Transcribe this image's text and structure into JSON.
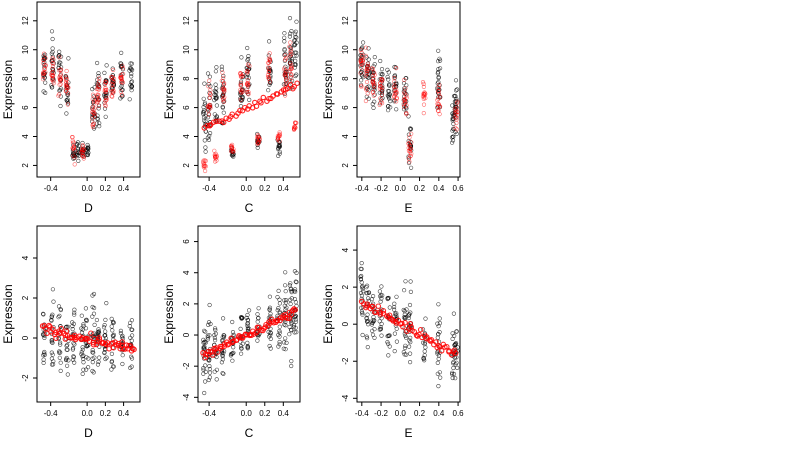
{
  "chart_data": [
    {
      "type": "scatter",
      "xlabel": "D",
      "ylabel": "Expression",
      "xlim": [
        -0.55,
        0.58
      ],
      "ylim": [
        1.2,
        13.3
      ],
      "xticks": [
        -0.4,
        0.0,
        0.2,
        0.4
      ],
      "xtick_labels": [
        "-0.4",
        "0.0",
        "0.2",
        "0.4"
      ],
      "yticks": [
        2,
        4,
        6,
        8,
        10,
        12
      ],
      "ytick_labels": [
        "2",
        "4",
        "6",
        "8",
        "10",
        "12"
      ],
      "series": [
        {
          "color": "#000000",
          "columns": [
            {
              "x": -0.47,
              "center": 8.5,
              "spread": 1.6
            },
            {
              "x": -0.38,
              "center": 9.0,
              "spread": 1.8
            },
            {
              "x": -0.3,
              "center": 8.2,
              "spread": 1.7
            },
            {
              "x": -0.22,
              "center": 7.5,
              "spread": 1.5
            },
            {
              "x": -0.15,
              "center": 2.8,
              "spread": 0.5
            },
            {
              "x": -0.1,
              "center": 3.0,
              "spread": 0.6
            },
            {
              "x": -0.05,
              "center": 2.9,
              "spread": 0.5
            },
            {
              "x": 0.0,
              "center": 3.0,
              "spread": 0.5
            },
            {
              "x": 0.07,
              "center": 6.0,
              "spread": 1.5
            },
            {
              "x": 0.12,
              "center": 7.0,
              "spread": 1.8
            },
            {
              "x": 0.2,
              "center": 7.2,
              "spread": 1.5
            },
            {
              "x": 0.28,
              "center": 7.8,
              "spread": 1.4
            },
            {
              "x": 0.38,
              "center": 8.0,
              "spread": 1.5
            },
            {
              "x": 0.48,
              "center": 8.2,
              "spread": 1.3
            }
          ]
        },
        {
          "color": "#ff0000",
          "columns": [
            {
              "x": -0.47,
              "center": 8.8,
              "spread": 1.0
            },
            {
              "x": -0.38,
              "center": 8.5,
              "spread": 1.2
            },
            {
              "x": -0.3,
              "center": 8.0,
              "spread": 1.0
            },
            {
              "x": -0.22,
              "center": 7.6,
              "spread": 1.0
            },
            {
              "x": -0.15,
              "center": 3.2,
              "spread": 0.8
            },
            {
              "x": -0.05,
              "center": 3.0,
              "spread": 0.6
            },
            {
              "x": 0.07,
              "center": 5.8,
              "spread": 1.2
            },
            {
              "x": 0.12,
              "center": 6.8,
              "spread": 1.2
            },
            {
              "x": 0.2,
              "center": 7.3,
              "spread": 1.0
            },
            {
              "x": 0.28,
              "center": 7.6,
              "spread": 1.0
            },
            {
              "x": 0.38,
              "center": 7.8,
              "spread": 1.0
            }
          ]
        }
      ]
    },
    {
      "type": "scatter",
      "xlabel": "C",
      "ylabel": "Expression",
      "xlim": [
        -0.52,
        0.58
      ],
      "ylim": [
        1.2,
        13.3
      ],
      "xticks": [
        -0.4,
        0.0,
        0.2,
        0.4
      ],
      "xtick_labels": [
        "-0.4",
        "0.0",
        "0.2",
        "0.4"
      ],
      "yticks": [
        2,
        4,
        6,
        8,
        10,
        12
      ],
      "ytick_labels": [
        "2",
        "4",
        "6",
        "8",
        "10",
        "12"
      ],
      "series": [
        {
          "color": "#000000",
          "columns": [
            {
              "x": -0.45,
              "center": 5.2,
              "spread": 2.0
            },
            {
              "x": -0.4,
              "center": 5.8,
              "spread": 2.2
            },
            {
              "x": -0.33,
              "center": 6.2,
              "spread": 2.0
            },
            {
              "x": -0.25,
              "center": 6.5,
              "spread": 2.0
            },
            {
              "x": -0.15,
              "center": 2.8,
              "spread": 0.3
            },
            {
              "x": -0.05,
              "center": 7.0,
              "spread": 1.8
            },
            {
              "x": 0.02,
              "center": 8.0,
              "spread": 1.8
            },
            {
              "x": 0.13,
              "center": 3.8,
              "spread": 0.5
            },
            {
              "x": 0.25,
              "center": 8.5,
              "spread": 1.5
            },
            {
              "x": 0.35,
              "center": 3.5,
              "spread": 0.8
            },
            {
              "x": 0.42,
              "center": 9.0,
              "spread": 2.0
            },
            {
              "x": 0.48,
              "center": 9.5,
              "spread": 2.2
            },
            {
              "x": 0.53,
              "center": 9.8,
              "spread": 2.0
            }
          ]
        },
        {
          "color": "#ff0000",
          "columns": [
            {
              "x": -0.45,
              "center": 2.0,
              "spread": 0.3
            },
            {
              "x": -0.4,
              "center": 6.5,
              "spread": 1.0
            },
            {
              "x": -0.33,
              "center": 2.6,
              "spread": 0.3
            },
            {
              "x": -0.25,
              "center": 7.2,
              "spread": 1.0
            },
            {
              "x": -0.15,
              "center": 3.2,
              "spread": 0.3
            },
            {
              "x": -0.05,
              "center": 7.6,
              "spread": 1.0
            },
            {
              "x": 0.02,
              "center": 8.0,
              "spread": 1.0
            },
            {
              "x": 0.13,
              "center": 3.8,
              "spread": 0.3
            },
            {
              "x": 0.25,
              "center": 8.6,
              "spread": 1.0
            },
            {
              "x": 0.35,
              "center": 4.0,
              "spread": 0.3
            },
            {
              "x": 0.42,
              "center": 8.4,
              "spread": 1.2
            },
            {
              "x": 0.48,
              "center": 9.0,
              "spread": 1.2
            },
            {
              "x": 0.53,
              "center": 4.8,
              "spread": 0.4
            }
          ]
        }
      ],
      "trend": {
        "color": "#ff0000",
        "from": [
          -0.45,
          4.6
        ],
        "to": [
          0.55,
          7.6
        ],
        "count": 40
      }
    },
    {
      "type": "scatter",
      "xlabel": "E",
      "ylabel": "Expression",
      "xlim": [
        -0.45,
        0.62
      ],
      "ylim": [
        1.2,
        13.3
      ],
      "xticks": [
        -0.4,
        -0.2,
        0.0,
        0.2,
        0.4,
        0.6
      ],
      "xtick_labels": [
        "-0.4",
        "-0.2",
        "0.0",
        "0.2",
        "0.4",
        "0.6"
      ],
      "yticks": [
        2,
        4,
        6,
        8,
        10,
        12
      ],
      "ytick_labels": [
        "2",
        "4",
        "6",
        "8",
        "10",
        "12"
      ],
      "series": [
        {
          "color": "#000000",
          "columns": [
            {
              "x": -0.4,
              "center": 8.8,
              "spread": 2.0
            },
            {
              "x": -0.34,
              "center": 8.5,
              "spread": 2.0
            },
            {
              "x": -0.28,
              "center": 8.0,
              "spread": 1.8
            },
            {
              "x": -0.2,
              "center": 7.5,
              "spread": 1.6
            },
            {
              "x": -0.12,
              "center": 7.2,
              "spread": 1.6
            },
            {
              "x": -0.05,
              "center": 7.5,
              "spread": 1.4
            },
            {
              "x": 0.05,
              "center": 6.8,
              "spread": 1.5
            },
            {
              "x": 0.1,
              "center": 3.5,
              "spread": 1.5
            },
            {
              "x": 0.4,
              "center": 7.5,
              "spread": 2.5
            },
            {
              "x": 0.55,
              "center": 5.5,
              "spread": 1.8
            },
            {
              "x": 0.58,
              "center": 5.8,
              "spread": 1.8
            }
          ]
        },
        {
          "color": "#ff0000",
          "columns": [
            {
              "x": -0.4,
              "center": 8.8,
              "spread": 1.2
            },
            {
              "x": -0.35,
              "center": 8.2,
              "spread": 1.2
            },
            {
              "x": -0.28,
              "center": 7.8,
              "spread": 1.0
            },
            {
              "x": -0.2,
              "center": 7.5,
              "spread": 1.0
            },
            {
              "x": -0.05,
              "center": 7.2,
              "spread": 1.0
            },
            {
              "x": 0.05,
              "center": 6.5,
              "spread": 1.0
            },
            {
              "x": 0.1,
              "center": 3.0,
              "spread": 1.2
            },
            {
              "x": 0.25,
              "center": 7.0,
              "spread": 1.0
            },
            {
              "x": 0.4,
              "center": 6.2,
              "spread": 1.2
            },
            {
              "x": 0.58,
              "center": 5.5,
              "spread": 1.0
            }
          ]
        }
      ]
    },
    {
      "type": "scatter",
      "xlabel": "D",
      "ylabel": "Expression",
      "xlim": [
        -0.55,
        0.58
      ],
      "ylim": [
        -3.2,
        5.6
      ],
      "xticks": [
        -0.4,
        0.0,
        0.2,
        0.4
      ],
      "xtick_labels": [
        "-0.4",
        "0.0",
        "0.2",
        "0.4"
      ],
      "yticks": [
        -2,
        0,
        2,
        4
      ],
      "ytick_labels": [
        "-2",
        "0",
        "2",
        "4"
      ],
      "series": [
        {
          "color": "#000000",
          "columns": [
            {
              "x": -0.47,
              "center": 0.5,
              "spread": 1.3
            },
            {
              "x": -0.38,
              "center": 0.3,
              "spread": 1.6
            },
            {
              "x": -0.3,
              "center": 0.2,
              "spread": 1.5
            },
            {
              "x": -0.22,
              "center": 0.0,
              "spread": 1.4
            },
            {
              "x": -0.15,
              "center": 0.1,
              "spread": 1.5
            },
            {
              "x": -0.05,
              "center": -0.2,
              "spread": 1.5
            },
            {
              "x": 0.0,
              "center": -0.1,
              "spread": 1.5
            },
            {
              "x": 0.07,
              "center": 0.0,
              "spread": 2.0
            },
            {
              "x": 0.12,
              "center": -0.3,
              "spread": 1.6
            },
            {
              "x": 0.2,
              "center": -0.3,
              "spread": 1.5
            },
            {
              "x": 0.28,
              "center": -0.4,
              "spread": 1.4
            },
            {
              "x": 0.38,
              "center": -0.5,
              "spread": 1.2
            },
            {
              "x": 0.48,
              "center": -0.3,
              "spread": 1.2
            }
          ]
        }
      ],
      "trend": {
        "color": "#ff0000",
        "from": [
          -0.48,
          0.45
        ],
        "to": [
          0.52,
          -0.6
        ],
        "count": 70
      }
    },
    {
      "type": "scatter",
      "xlabel": "C",
      "ylabel": "Expression",
      "xlim": [
        -0.52,
        0.58
      ],
      "ylim": [
        -4.3,
        7.0
      ],
      "xticks": [
        -0.4,
        0.0,
        0.2,
        0.4
      ],
      "xtick_labels": [
        "-0.4",
        "0.0",
        "0.2",
        "0.4"
      ],
      "yticks": [
        -4,
        -2,
        0,
        2,
        4,
        6
      ],
      "ytick_labels": [
        "-4",
        "-2",
        "0",
        "2",
        "4",
        "6"
      ],
      "series": [
        {
          "color": "#000000",
          "columns": [
            {
              "x": -0.45,
              "center": -1.5,
              "spread": 2.0
            },
            {
              "x": -0.4,
              "center": -1.2,
              "spread": 2.0
            },
            {
              "x": -0.33,
              "center": -0.8,
              "spread": 1.5
            },
            {
              "x": -0.25,
              "center": -0.6,
              "spread": 1.5
            },
            {
              "x": -0.15,
              "center": -0.3,
              "spread": 1.2
            },
            {
              "x": -0.05,
              "center": 0.0,
              "spread": 1.3
            },
            {
              "x": 0.02,
              "center": 0.2,
              "spread": 1.5
            },
            {
              "x": 0.13,
              "center": 0.4,
              "spread": 1.2
            },
            {
              "x": 0.25,
              "center": 0.8,
              "spread": 1.8
            },
            {
              "x": 0.35,
              "center": 1.0,
              "spread": 2.0
            },
            {
              "x": 0.42,
              "center": 1.3,
              "spread": 2.2
            },
            {
              "x": 0.48,
              "center": 1.5,
              "spread": 2.5
            },
            {
              "x": 0.53,
              "center": 1.6,
              "spread": 2.5
            }
          ]
        }
      ],
      "trend": {
        "color": "#ff0000",
        "from": [
          -0.46,
          -1.3
        ],
        "to": [
          0.53,
          1.5
        ],
        "count": 70
      }
    },
    {
      "type": "scatter",
      "xlabel": "E",
      "ylabel": "Expression",
      "xlim": [
        -0.45,
        0.62
      ],
      "ylim": [
        -4.2,
        5.3
      ],
      "xticks": [
        -0.4,
        -0.2,
        0.0,
        0.2,
        0.4,
        0.6
      ],
      "xtick_labels": [
        "-0.4",
        "-0.2",
        "0.0",
        "0.2",
        "0.4",
        "0.6"
      ],
      "yticks": [
        -4,
        -2,
        0,
        2,
        4
      ],
      "ytick_labels": [
        "-4",
        "-2",
        "0",
        "2",
        "4"
      ],
      "series": [
        {
          "color": "#000000",
          "columns": [
            {
              "x": -0.4,
              "center": 1.5,
              "spread": 2.0
            },
            {
              "x": -0.34,
              "center": 1.0,
              "spread": 1.8
            },
            {
              "x": -0.28,
              "center": 0.7,
              "spread": 1.6
            },
            {
              "x": -0.2,
              "center": 0.5,
              "spread": 1.5
            },
            {
              "x": -0.12,
              "center": 0.2,
              "spread": 1.3
            },
            {
              "x": -0.05,
              "center": 0.2,
              "spread": 1.4
            },
            {
              "x": 0.05,
              "center": -0.1,
              "spread": 1.6
            },
            {
              "x": 0.1,
              "center": -0.5,
              "spread": 2.0
            },
            {
              "x": 0.25,
              "center": -0.8,
              "spread": 1.2
            },
            {
              "x": 0.4,
              "center": -1.0,
              "spread": 2.0
            },
            {
              "x": 0.55,
              "center": -1.8,
              "spread": 1.5
            },
            {
              "x": 0.58,
              "center": -1.6,
              "spread": 1.5
            }
          ]
        }
      ],
      "trend": {
        "color": "#ff0000",
        "from": [
          -0.4,
          1.2
        ],
        "to": [
          0.58,
          -1.6
        ],
        "count": 60
      }
    }
  ]
}
